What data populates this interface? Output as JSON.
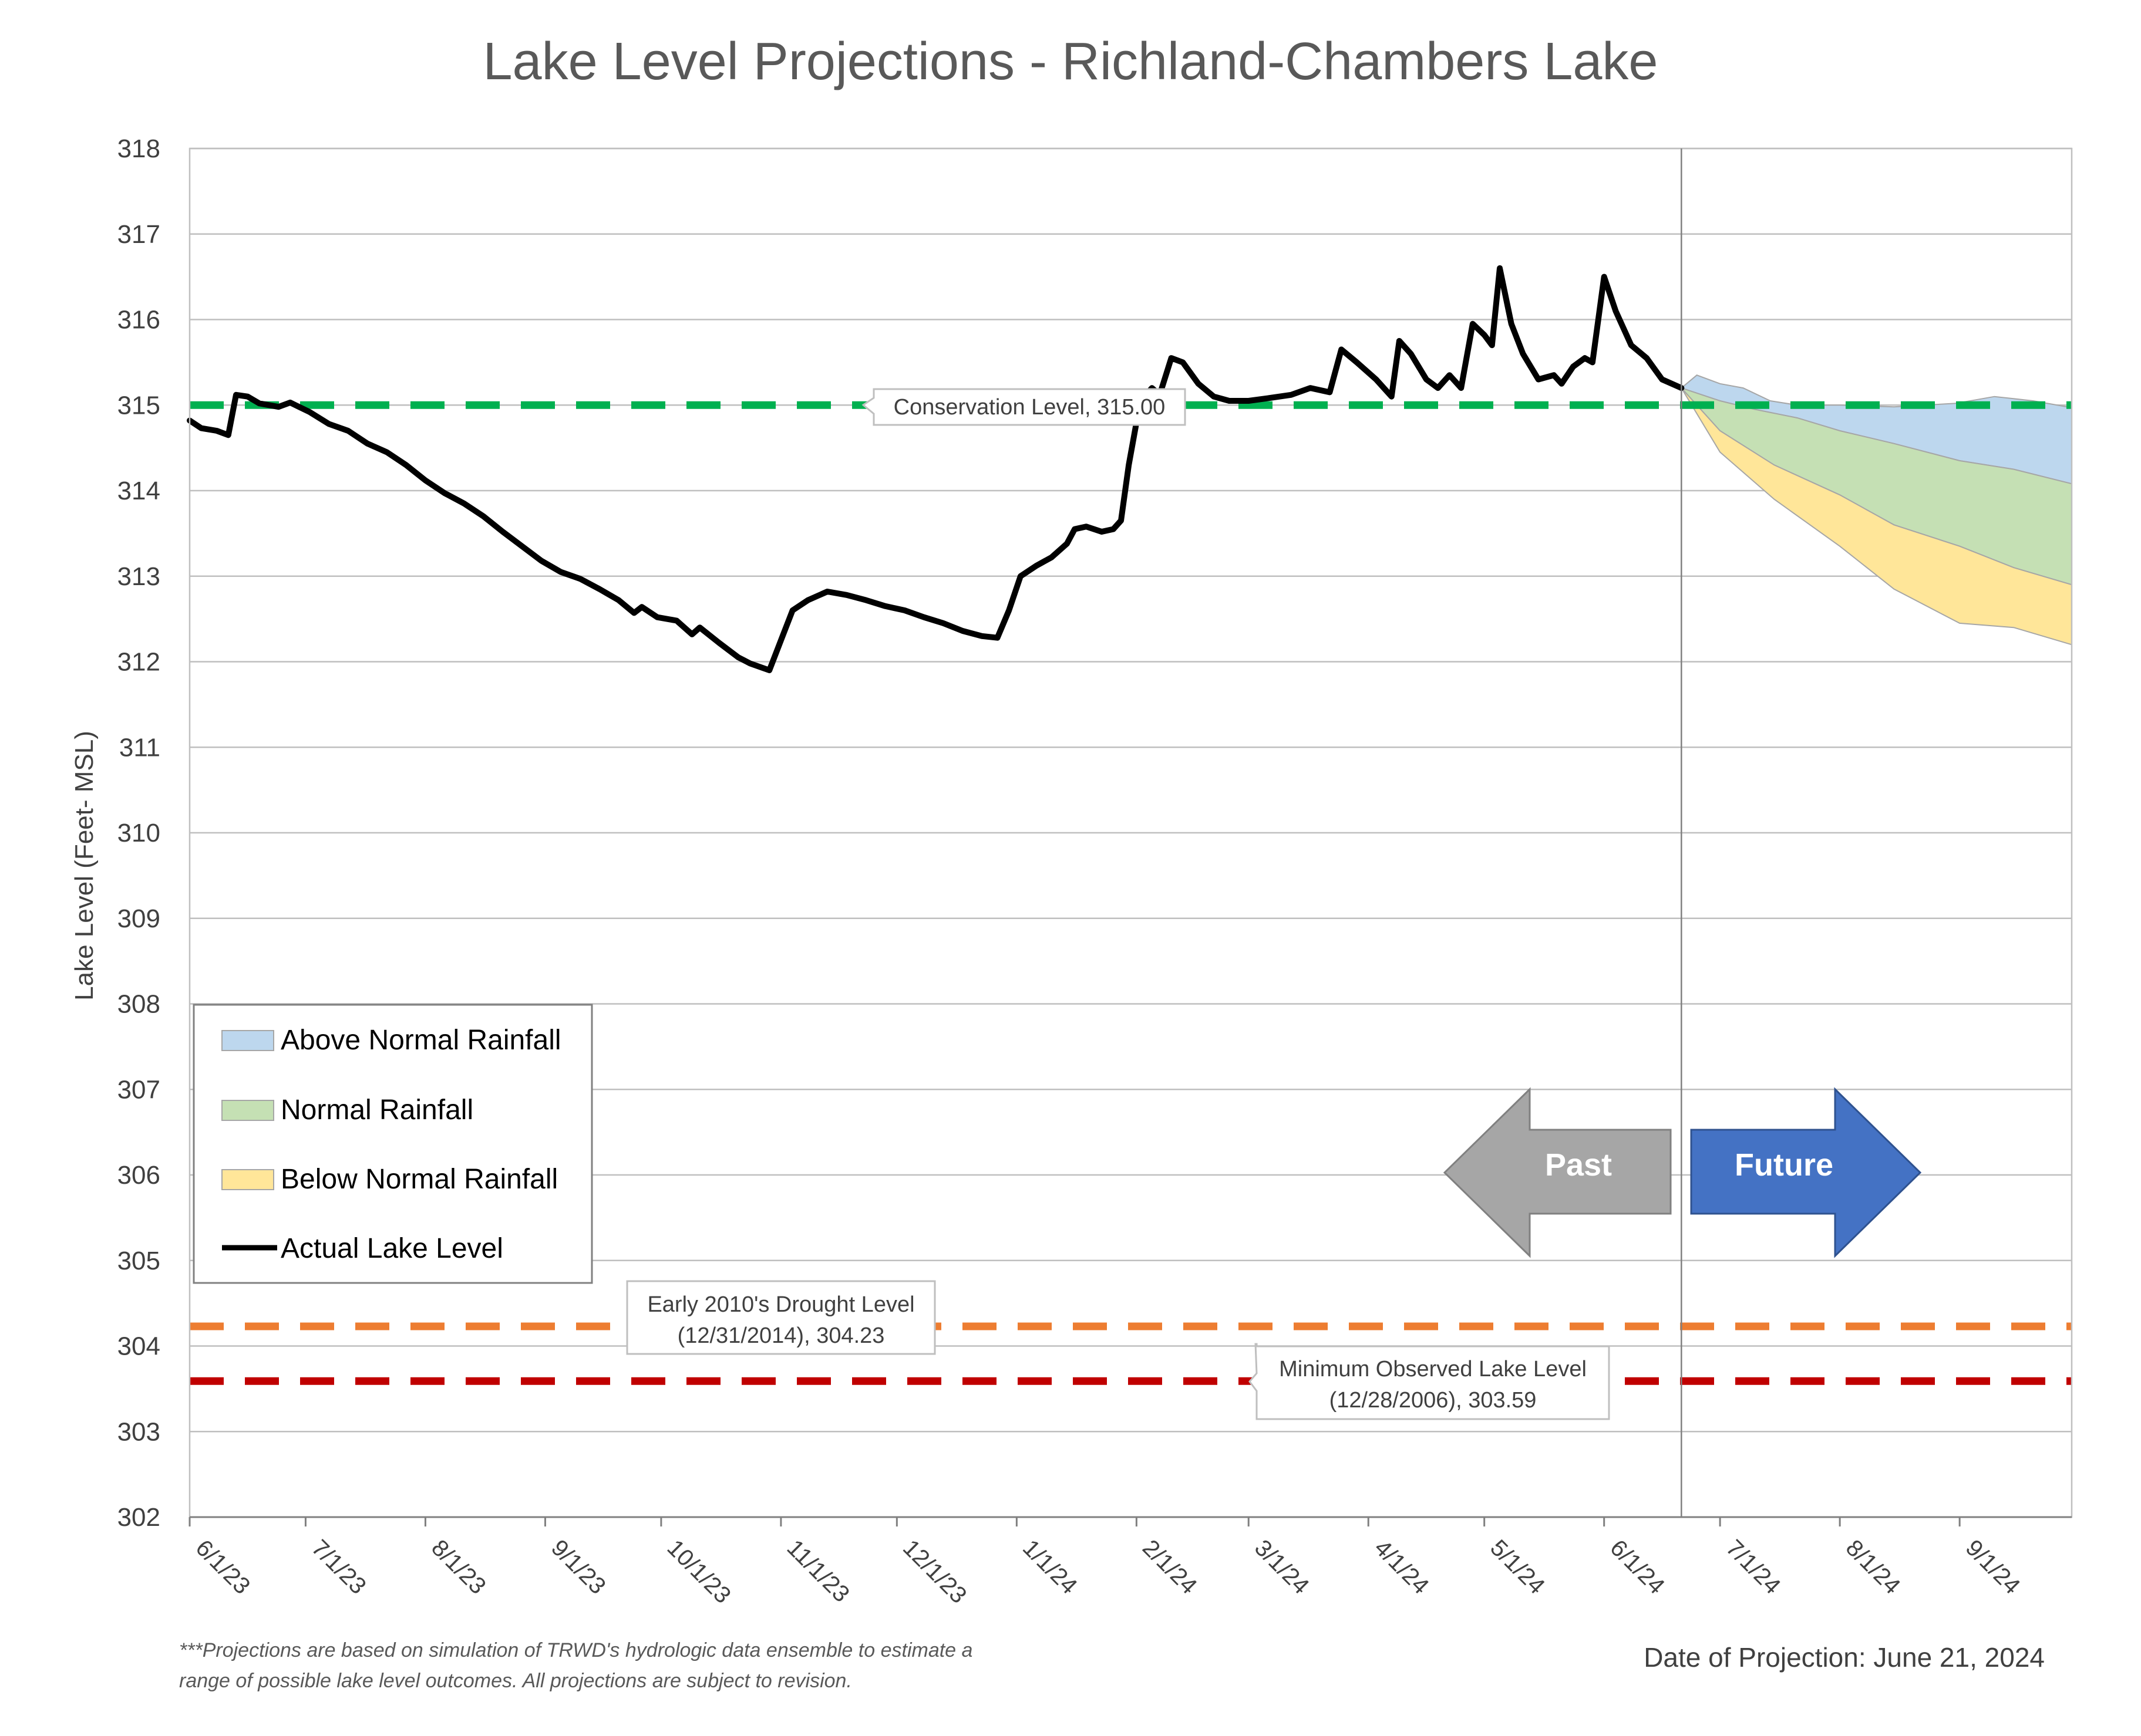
{
  "chart_data": {
    "type": "line",
    "title": "Lake Level Projections - Richland-Chambers Lake",
    "ylabel": "Lake Level (Feet- MSL)",
    "xlabel": "",
    "ylim": [
      302,
      318
    ],
    "yticks": [
      "302",
      "303",
      "304",
      "305",
      "306",
      "307",
      "308",
      "309",
      "310",
      "311",
      "312",
      "313",
      "314",
      "315",
      "316",
      "317",
      "318"
    ],
    "xlim": [
      "2023-06-01",
      "2024-09-30"
    ],
    "xticks": [
      {
        "date": "2023-06-01",
        "label": "6/1/23"
      },
      {
        "date": "2023-07-01",
        "label": "7/1/23"
      },
      {
        "date": "2023-08-01",
        "label": "8/1/23"
      },
      {
        "date": "2023-09-01",
        "label": "9/1/23"
      },
      {
        "date": "2023-10-01",
        "label": "10/1/23"
      },
      {
        "date": "2023-11-01",
        "label": "11/1/23"
      },
      {
        "date": "2023-12-01",
        "label": "12/1/23"
      },
      {
        "date": "2024-01-01",
        "label": "1/1/24"
      },
      {
        "date": "2024-02-01",
        "label": "2/1/24"
      },
      {
        "date": "2024-03-01",
        "label": "3/1/24"
      },
      {
        "date": "2024-04-01",
        "label": "4/1/24"
      },
      {
        "date": "2024-05-01",
        "label": "5/1/24"
      },
      {
        "date": "2024-06-01",
        "label": "6/1/24"
      },
      {
        "date": "2024-07-01",
        "label": "7/1/24"
      },
      {
        "date": "2024-08-01",
        "label": "8/1/24"
      },
      {
        "date": "2024-09-01",
        "label": "9/1/24"
      }
    ],
    "grid": "horizontal",
    "legend_position": "left",
    "projection_date": "2024-06-21",
    "reference_lines": [
      {
        "value": 315.0,
        "color": "#00b050",
        "label": "Conservation Level, 315.00"
      },
      {
        "value": 304.23,
        "color": "#ed7d31",
        "label_line1": "Early 2010's Drought Level",
        "label_line2": "(12/31/2014), 304.23"
      },
      {
        "value": 303.59,
        "color": "#c00000",
        "label_line1": "Minimum Observed Lake Level",
        "label_line2": "(12/28/2006), 303.59"
      }
    ],
    "series": [
      {
        "name": "Actual Lake Level",
        "color": "#000000",
        "points": [
          [
            "2023-06-01",
            314.82
          ],
          [
            "2023-06-04",
            314.73
          ],
          [
            "2023-06-08",
            314.7
          ],
          [
            "2023-06-11",
            314.65
          ],
          [
            "2023-06-13",
            315.12
          ],
          [
            "2023-06-16",
            315.1
          ],
          [
            "2023-06-19",
            315.02
          ],
          [
            "2023-06-24",
            314.98
          ],
          [
            "2023-06-27",
            315.03
          ],
          [
            "2023-07-02",
            314.92
          ],
          [
            "2023-07-07",
            314.78
          ],
          [
            "2023-07-12",
            314.7
          ],
          [
            "2023-07-17",
            314.55
          ],
          [
            "2023-07-22",
            314.45
          ],
          [
            "2023-07-27",
            314.3
          ],
          [
            "2023-08-01",
            314.12
          ],
          [
            "2023-08-06",
            313.97
          ],
          [
            "2023-08-11",
            313.85
          ],
          [
            "2023-08-16",
            313.7
          ],
          [
            "2023-08-21",
            313.52
          ],
          [
            "2023-08-26",
            313.35
          ],
          [
            "2023-08-31",
            313.18
          ],
          [
            "2023-09-05",
            313.05
          ],
          [
            "2023-09-10",
            312.97
          ],
          [
            "2023-09-15",
            312.85
          ],
          [
            "2023-09-20",
            312.72
          ],
          [
            "2023-09-24",
            312.57
          ],
          [
            "2023-09-26",
            312.64
          ],
          [
            "2023-09-30",
            312.52
          ],
          [
            "2023-10-05",
            312.48
          ],
          [
            "2023-10-09",
            312.32
          ],
          [
            "2023-10-11",
            312.4
          ],
          [
            "2023-10-16",
            312.22
          ],
          [
            "2023-10-21",
            312.05
          ],
          [
            "2023-10-24",
            311.98
          ],
          [
            "2023-10-29",
            311.9
          ],
          [
            "2023-11-01",
            312.25
          ],
          [
            "2023-11-04",
            312.6
          ],
          [
            "2023-11-08",
            312.72
          ],
          [
            "2023-11-13",
            312.82
          ],
          [
            "2023-11-18",
            312.78
          ],
          [
            "2023-11-23",
            312.72
          ],
          [
            "2023-11-28",
            312.65
          ],
          [
            "2023-12-03",
            312.6
          ],
          [
            "2023-12-08",
            312.52
          ],
          [
            "2023-12-13",
            312.45
          ],
          [
            "2023-12-18",
            312.36
          ],
          [
            "2023-12-23",
            312.3
          ],
          [
            "2023-12-27",
            312.28
          ],
          [
            "2023-12-30",
            312.6
          ],
          [
            "2024-01-02",
            313.0
          ],
          [
            "2024-01-06",
            313.12
          ],
          [
            "2024-01-10",
            313.22
          ],
          [
            "2024-01-14",
            313.38
          ],
          [
            "2024-01-16",
            313.55
          ],
          [
            "2024-01-19",
            313.58
          ],
          [
            "2024-01-23",
            313.52
          ],
          [
            "2024-01-26",
            313.55
          ],
          [
            "2024-01-28",
            313.65
          ],
          [
            "2024-01-30",
            314.3
          ],
          [
            "2024-02-02",
            315.05
          ],
          [
            "2024-02-05",
            315.2
          ],
          [
            "2024-02-07",
            315.12
          ],
          [
            "2024-02-10",
            315.55
          ],
          [
            "2024-02-13",
            315.5
          ],
          [
            "2024-02-17",
            315.25
          ],
          [
            "2024-02-21",
            315.1
          ],
          [
            "2024-02-25",
            315.05
          ],
          [
            "2024-03-01",
            315.05
          ],
          [
            "2024-03-06",
            315.08
          ],
          [
            "2024-03-12",
            315.12
          ],
          [
            "2024-03-17",
            315.2
          ],
          [
            "2024-03-22",
            315.15
          ],
          [
            "2024-03-25",
            315.65
          ],
          [
            "2024-03-29",
            315.5
          ],
          [
            "2024-04-03",
            315.3
          ],
          [
            "2024-04-07",
            315.1
          ],
          [
            "2024-04-09",
            315.75
          ],
          [
            "2024-04-12",
            315.6
          ],
          [
            "2024-04-16",
            315.3
          ],
          [
            "2024-04-19",
            315.2
          ],
          [
            "2024-04-22",
            315.35
          ],
          [
            "2024-04-25",
            315.2
          ],
          [
            "2024-04-28",
            315.95
          ],
          [
            "2024-05-01",
            315.82
          ],
          [
            "2024-05-03",
            315.7
          ],
          [
            "2024-05-05",
            316.6
          ],
          [
            "2024-05-08",
            315.95
          ],
          [
            "2024-05-11",
            315.6
          ],
          [
            "2024-05-15",
            315.3
          ],
          [
            "2024-05-19",
            315.35
          ],
          [
            "2024-05-21",
            315.25
          ],
          [
            "2024-05-24",
            315.45
          ],
          [
            "2024-05-27",
            315.55
          ],
          [
            "2024-05-29",
            315.5
          ],
          [
            "2024-06-01",
            316.5
          ],
          [
            "2024-06-04",
            316.1
          ],
          [
            "2024-06-08",
            315.7
          ],
          [
            "2024-06-12",
            315.55
          ],
          [
            "2024-06-16",
            315.3
          ],
          [
            "2024-06-21",
            315.2
          ]
        ]
      },
      {
        "name": "Above Normal Rainfall",
        "fill": "#bdd7ee",
        "upper": [
          [
            "2024-06-21",
            315.2
          ],
          [
            "2024-06-25",
            315.35
          ],
          [
            "2024-07-01",
            315.25
          ],
          [
            "2024-07-07",
            315.2
          ],
          [
            "2024-07-14",
            315.05
          ],
          [
            "2024-07-21",
            315.0
          ],
          [
            "2024-08-01",
            315.0
          ],
          [
            "2024-08-15",
            314.98
          ],
          [
            "2024-08-31",
            315.02
          ],
          [
            "2024-09-10",
            315.1
          ],
          [
            "2024-09-20",
            315.05
          ],
          [
            "2024-09-30",
            314.97
          ]
        ],
        "lower": [
          [
            "2024-06-21",
            315.2
          ],
          [
            "2024-07-01",
            315.05
          ],
          [
            "2024-07-10",
            314.95
          ],
          [
            "2024-07-21",
            314.85
          ],
          [
            "2024-08-01",
            314.7
          ],
          [
            "2024-08-15",
            314.55
          ],
          [
            "2024-09-01",
            314.35
          ],
          [
            "2024-09-15",
            314.25
          ],
          [
            "2024-09-30",
            314.08
          ]
        ]
      },
      {
        "name": "Normal Rainfall",
        "fill": "#c5e0b4",
        "upper": [
          [
            "2024-06-21",
            315.2
          ],
          [
            "2024-07-01",
            315.05
          ],
          [
            "2024-07-10",
            314.95
          ],
          [
            "2024-07-21",
            314.85
          ],
          [
            "2024-08-01",
            314.7
          ],
          [
            "2024-08-15",
            314.55
          ],
          [
            "2024-09-01",
            314.35
          ],
          [
            "2024-09-15",
            314.25
          ],
          [
            "2024-09-30",
            314.08
          ]
        ],
        "lower": [
          [
            "2024-06-21",
            315.2
          ],
          [
            "2024-07-01",
            314.7
          ],
          [
            "2024-07-15",
            314.3
          ],
          [
            "2024-08-01",
            313.95
          ],
          [
            "2024-08-15",
            313.6
          ],
          [
            "2024-09-01",
            313.35
          ],
          [
            "2024-09-15",
            313.1
          ],
          [
            "2024-09-30",
            312.9
          ]
        ]
      },
      {
        "name": "Below Normal Rainfall",
        "fill": "#ffe699",
        "upper": [
          [
            "2024-06-21",
            315.2
          ],
          [
            "2024-07-01",
            314.7
          ],
          [
            "2024-07-15",
            314.3
          ],
          [
            "2024-08-01",
            313.95
          ],
          [
            "2024-08-15",
            313.6
          ],
          [
            "2024-09-01",
            313.35
          ],
          [
            "2024-09-15",
            313.1
          ],
          [
            "2024-09-30",
            312.9
          ]
        ],
        "lower": [
          [
            "2024-06-21",
            315.2
          ],
          [
            "2024-07-01",
            314.45
          ],
          [
            "2024-07-15",
            313.9
          ],
          [
            "2024-08-01",
            313.35
          ],
          [
            "2024-08-15",
            312.85
          ],
          [
            "2024-09-01",
            312.45
          ],
          [
            "2024-09-15",
            312.4
          ],
          [
            "2024-09-30",
            312.2
          ]
        ]
      }
    ],
    "annotations": {
      "past_label": "Past",
      "future_label": "Future",
      "note_line1": "***Projections are based on simulation of TRWD's hydrologic data ensemble to estimate a",
      "note_line2": "range of possible lake level outcomes.  All projections are subject to revision.",
      "projection_date_text": "Date of Projection: June 21, 2024"
    }
  },
  "colors": {
    "actual": "#000000",
    "conservation": "#00b050",
    "drought": "#ed7d31",
    "minimum": "#c00000",
    "past_arrow": "#a6a6a6",
    "future_arrow": "#4472c4",
    "grid": "#bfbfbf"
  }
}
